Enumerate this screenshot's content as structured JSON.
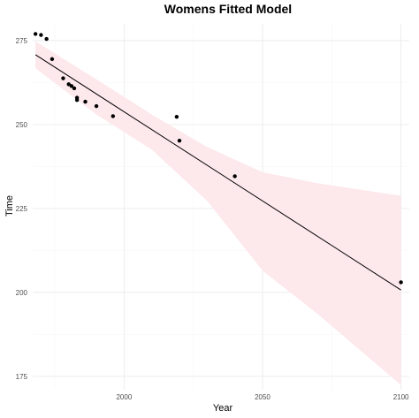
{
  "chart_data": {
    "type": "scatter",
    "title": "Womens Fitted Model",
    "xlabel": "Year",
    "ylabel": "Time",
    "xlim": [
      1967,
      2103
    ],
    "ylim": [
      171,
      280
    ],
    "x_ticks": [
      2000,
      2050,
      2100
    ],
    "y_ticks": [
      175,
      200,
      225,
      250,
      275
    ],
    "x_tick_labels": [
      "2000",
      "2050",
      "2100"
    ],
    "y_tick_labels": [
      "175",
      "200",
      "225",
      "250",
      "275"
    ],
    "grid": true,
    "points": [
      {
        "x": 1968,
        "y": 277.0
      },
      {
        "x": 1970,
        "y": 276.7
      },
      {
        "x": 1972,
        "y": 275.5
      },
      {
        "x": 1974,
        "y": 269.5
      },
      {
        "x": 1978,
        "y": 263.8
      },
      {
        "x": 1980,
        "y": 262.0
      },
      {
        "x": 1981,
        "y": 261.5
      },
      {
        "x": 1982,
        "y": 260.8
      },
      {
        "x": 1983,
        "y": 258.0
      },
      {
        "x": 1983,
        "y": 257.3
      },
      {
        "x": 1986,
        "y": 256.8
      },
      {
        "x": 1990,
        "y": 255.5
      },
      {
        "x": 1996,
        "y": 252.5
      },
      {
        "x": 2019,
        "y": 252.3
      },
      {
        "x": 2020,
        "y": 245.2
      },
      {
        "x": 2040,
        "y": 234.6
      },
      {
        "x": 2100,
        "y": 203.0
      }
    ],
    "fit_line": [
      {
        "x": 1968,
        "y": 270.8
      },
      {
        "x": 2100,
        "y": 200.7
      }
    ],
    "confidence_band": {
      "x": [
        1968,
        1990,
        2010,
        2030,
        2050,
        2070,
        2100
      ],
      "upper": [
        274.8,
        263.5,
        253.0,
        243.3,
        235.8,
        232.5,
        228.8
      ],
      "lower": [
        266.8,
        253.0,
        242.5,
        227.3,
        206.5,
        193.5,
        172.4
      ]
    },
    "colors": {
      "point": "#000000",
      "line": "#000000",
      "band": "#fde8ec"
    }
  }
}
